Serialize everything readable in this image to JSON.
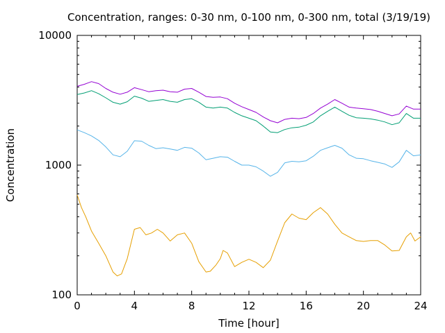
{
  "chart_data": {
    "type": "line",
    "title": "Concentration, ranges: 0-30 nm, 0-100 nm, 0-300 nm, total (3/19/19)",
    "xlabel": "Time [hour]",
    "ylabel": "Concentration",
    "xlim": [
      0,
      24
    ],
    "ylim": [
      100,
      10000
    ],
    "yscale": "log",
    "grid": false,
    "x_ticks": [
      0,
      4,
      8,
      12,
      16,
      20,
      24
    ],
    "x_tick_labels": [
      "0",
      "4",
      "8",
      "12",
      "16",
      "20",
      "24"
    ],
    "y_ticks": [
      100,
      1000,
      10000
    ],
    "y_tick_labels": [
      "100",
      "1000",
      "10000"
    ],
    "series": [
      {
        "color": "#e69f00",
        "x": [
          0,
          0.3,
          0.6,
          1,
          1.5,
          2,
          2.5,
          2.8,
          3.1,
          3.5,
          4,
          4.4,
          4.8,
          5.2,
          5.6,
          6,
          6.5,
          7,
          7.5,
          8,
          8.5,
          9,
          9.3,
          9.7,
          10,
          10.2,
          10.5,
          11,
          11.5,
          12,
          12.5,
          13,
          13.5,
          14,
          14.5,
          15,
          15.5,
          16,
          16.5,
          17,
          17.5,
          18,
          18.5,
          19,
          19.5,
          20,
          20.5,
          21,
          21.5,
          22,
          22.5,
          23,
          23.3,
          23.6,
          24
        ],
        "values": [
          590,
          470,
          400,
          310,
          250,
          200,
          150,
          140,
          145,
          190,
          320,
          330,
          290,
          300,
          320,
          300,
          260,
          290,
          300,
          250,
          180,
          150,
          152,
          170,
          190,
          220,
          210,
          165,
          178,
          188,
          178,
          162,
          185,
          260,
          360,
          420,
          390,
          380,
          430,
          470,
          420,
          350,
          300,
          280,
          262,
          258,
          262,
          262,
          242,
          218,
          220,
          280,
          300,
          260,
          280
        ]
      },
      {
        "color": "#56b4e9",
        "x": [
          0,
          0.5,
          1,
          1.5,
          2,
          2.5,
          3,
          3.5,
          4,
          4.5,
          5,
          5.5,
          6,
          6.5,
          7,
          7.5,
          8,
          8.5,
          9,
          9.5,
          10,
          10.5,
          11,
          11.5,
          12,
          12.5,
          13,
          13.5,
          14,
          14.5,
          15,
          15.5,
          16,
          16.5,
          17,
          17.5,
          18,
          18.5,
          19,
          19.5,
          20,
          20.5,
          21,
          21.5,
          22,
          22.5,
          23,
          23.5,
          24
        ],
        "values": [
          1870,
          1780,
          1680,
          1550,
          1380,
          1200,
          1160,
          1280,
          1540,
          1530,
          1420,
          1340,
          1360,
          1330,
          1300,
          1370,
          1350,
          1240,
          1100,
          1130,
          1160,
          1150,
          1070,
          1000,
          1000,
          970,
          900,
          820,
          880,
          1040,
          1070,
          1060,
          1080,
          1170,
          1300,
          1360,
          1420,
          1350,
          1200,
          1130,
          1120,
          1080,
          1050,
          1020,
          960,
          1060,
          1300,
          1180,
          1200
        ]
      },
      {
        "color": "#009e73",
        "x": [
          0,
          0.5,
          1,
          1.5,
          2,
          2.5,
          3,
          3.5,
          4,
          4.5,
          5,
          5.5,
          6,
          6.5,
          7,
          7.5,
          8,
          8.5,
          9,
          9.5,
          10,
          10.5,
          11,
          11.5,
          12,
          12.5,
          13,
          13.5,
          14,
          14.5,
          15,
          15.5,
          16,
          16.5,
          17,
          17.5,
          18,
          18.5,
          19,
          19.5,
          20,
          20.5,
          21,
          21.5,
          22,
          22.5,
          23,
          23.5,
          24
        ],
        "values": [
          3500,
          3600,
          3750,
          3550,
          3300,
          3050,
          2950,
          3080,
          3400,
          3280,
          3100,
          3150,
          3200,
          3100,
          3050,
          3200,
          3250,
          3050,
          2800,
          2750,
          2800,
          2750,
          2550,
          2400,
          2300,
          2200,
          2000,
          1800,
          1780,
          1880,
          1940,
          1960,
          2030,
          2150,
          2400,
          2600,
          2800,
          2600,
          2420,
          2320,
          2300,
          2270,
          2220,
          2150,
          2050,
          2120,
          2500,
          2300,
          2300
        ]
      },
      {
        "color": "#9400d3",
        "x": [
          0,
          0.5,
          1,
          1.5,
          2,
          2.5,
          3,
          3.5,
          4,
          4.5,
          5,
          5.5,
          6,
          6.5,
          7,
          7.5,
          8,
          8.5,
          9,
          9.5,
          10,
          10.5,
          11,
          11.5,
          12,
          12.5,
          13,
          13.5,
          14,
          14.5,
          15,
          15.5,
          16,
          16.5,
          17,
          17.5,
          18,
          18.5,
          19,
          19.5,
          20,
          20.5,
          21,
          21.5,
          22,
          22.5,
          23,
          23.5,
          24
        ],
        "values": [
          4050,
          4200,
          4400,
          4250,
          3900,
          3650,
          3520,
          3650,
          3950,
          3820,
          3680,
          3750,
          3780,
          3680,
          3650,
          3850,
          3900,
          3650,
          3380,
          3330,
          3350,
          3250,
          3000,
          2820,
          2680,
          2550,
          2350,
          2200,
          2120,
          2250,
          2300,
          2280,
          2330,
          2500,
          2750,
          2950,
          3200,
          3000,
          2800,
          2750,
          2720,
          2680,
          2600,
          2500,
          2400,
          2480,
          2850,
          2700,
          2700
        ]
      }
    ]
  }
}
